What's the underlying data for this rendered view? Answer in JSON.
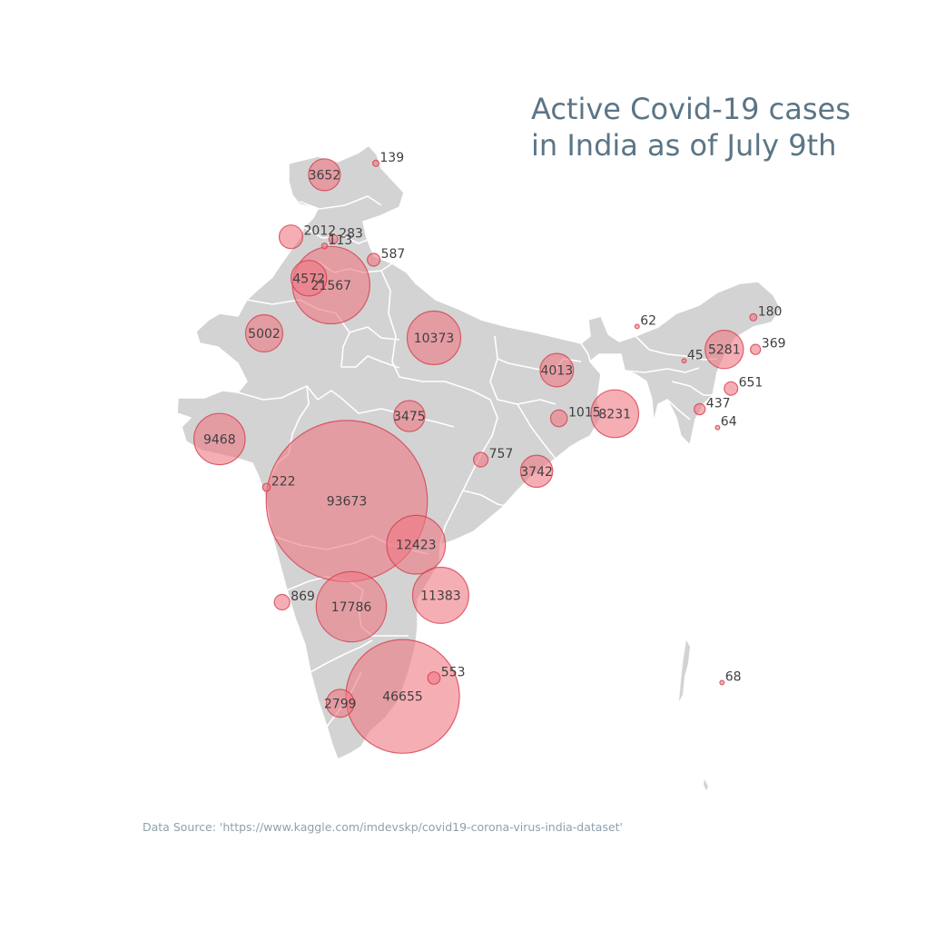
{
  "title_line1": "Active Covid-19 cases",
  "title_line2": "in India as of July 9th",
  "source": "Data Source: 'https://www.kaggle.com/imdevskp/covid19-corona-virus-india-dataset'",
  "colors": {
    "land": "#d3d3d3",
    "border": "#ffffff",
    "bubble_fill": "#f07883",
    "bubble_stroke": "#d33847",
    "title": "#5b7586",
    "label": "#404040"
  },
  "map_data": {
    "type": "bubble_map",
    "region": "India",
    "metric": "active cases",
    "points": [
      {
        "value": 139,
        "lon": 77.2,
        "lat": 34.3
      },
      {
        "value": 3652,
        "lon": 74.9,
        "lat": 33.8
      },
      {
        "value": 2012,
        "lon": 73.4,
        "lat": 31.1
      },
      {
        "value": 283,
        "lon": 75.3,
        "lat": 31.0
      },
      {
        "value": 113,
        "lon": 74.9,
        "lat": 30.7
      },
      {
        "value": 587,
        "lon": 77.1,
        "lat": 30.1
      },
      {
        "value": 4572,
        "lon": 74.2,
        "lat": 29.3
      },
      {
        "value": 21567,
        "lon": 75.2,
        "lat": 29.0
      },
      {
        "value": 5002,
        "lon": 72.2,
        "lat": 26.9
      },
      {
        "value": 10373,
        "lon": 79.8,
        "lat": 26.7
      },
      {
        "value": 62,
        "lon": 88.9,
        "lat": 27.2
      },
      {
        "value": 180,
        "lon": 94.1,
        "lat": 27.6
      },
      {
        "value": 5281,
        "lon": 92.8,
        "lat": 26.2
      },
      {
        "value": 369,
        "lon": 94.2,
        "lat": 26.2
      },
      {
        "value": 45,
        "lon": 91.0,
        "lat": 25.7
      },
      {
        "value": 651,
        "lon": 93.1,
        "lat": 24.5
      },
      {
        "value": 437,
        "lon": 91.7,
        "lat": 23.6
      },
      {
        "value": 64,
        "lon": 92.5,
        "lat": 22.8
      },
      {
        "value": 4013,
        "lon": 85.3,
        "lat": 25.3
      },
      {
        "value": 1015,
        "lon": 85.4,
        "lat": 23.2
      },
      {
        "value": 8231,
        "lon": 87.9,
        "lat": 23.4
      },
      {
        "value": 3475,
        "lon": 78.7,
        "lat": 23.3
      },
      {
        "value": 9468,
        "lon": 70.2,
        "lat": 22.3
      },
      {
        "value": 757,
        "lon": 81.9,
        "lat": 21.4
      },
      {
        "value": 3742,
        "lon": 84.4,
        "lat": 20.9
      },
      {
        "value": 222,
        "lon": 72.3,
        "lat": 20.2
      },
      {
        "value": 93673,
        "lon": 75.9,
        "lat": 19.6
      },
      {
        "value": 12423,
        "lon": 79.0,
        "lat": 17.7
      },
      {
        "value": 11383,
        "lon": 80.1,
        "lat": 15.5
      },
      {
        "value": 869,
        "lon": 73.0,
        "lat": 15.2
      },
      {
        "value": 17786,
        "lon": 76.1,
        "lat": 15.0
      },
      {
        "value": 553,
        "lon": 79.8,
        "lat": 11.9
      },
      {
        "value": 46655,
        "lon": 78.4,
        "lat": 11.1
      },
      {
        "value": 2799,
        "lon": 75.6,
        "lat": 10.8
      },
      {
        "value": 68,
        "lon": 92.7,
        "lat": 11.7
      }
    ]
  }
}
